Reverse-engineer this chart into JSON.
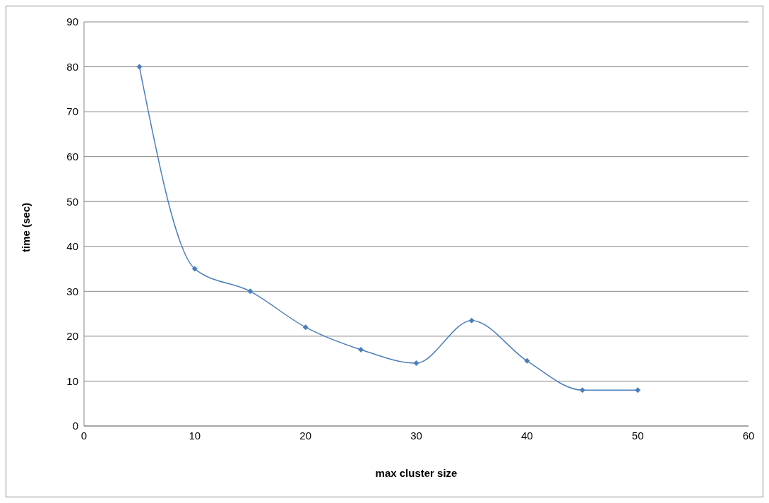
{
  "chart_data": {
    "type": "line",
    "xlabel": "max cluster size",
    "ylabel": "time (sec)",
    "x": [
      5,
      10,
      15,
      20,
      25,
      30,
      35,
      40,
      45,
      50
    ],
    "series": [
      {
        "color": "#4a7ebb",
        "values": [
          80,
          35,
          30,
          22,
          17,
          14,
          23.5,
          14.5,
          8,
          8
        ]
      }
    ],
    "xlim": [
      0,
      60
    ],
    "xticks": [
      0,
      10,
      20,
      30,
      40,
      50,
      60
    ],
    "ylim": [
      0,
      90
    ],
    "yticks": [
      0,
      10,
      20,
      30,
      40,
      50,
      60,
      70,
      80,
      90
    ],
    "grid": "y",
    "marker": "diamond",
    "line_style": "solid",
    "legend": false
  }
}
